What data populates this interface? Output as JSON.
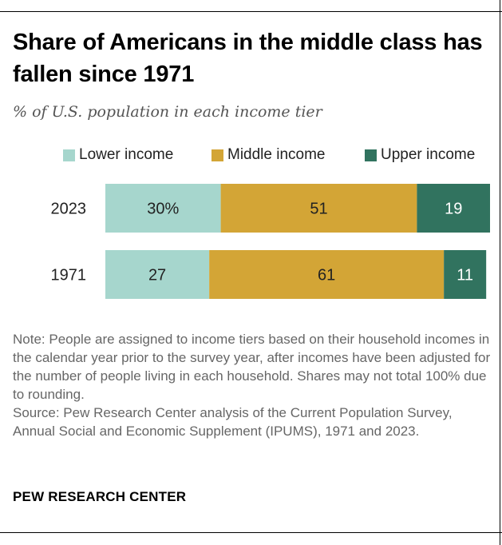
{
  "header": {
    "title": "Share of Americans in the middle class has fallen since 1971",
    "subtitle": "% of U.S. population in each income tier"
  },
  "legend": {
    "items": [
      {
        "label": "Lower income",
        "color": "#a6d6cd"
      },
      {
        "label": "Middle income",
        "color": "#d3a536"
      },
      {
        "label": "Upper income",
        "color": "#31735f"
      }
    ]
  },
  "chart_data": {
    "type": "bar",
    "orientation": "horizontal",
    "stacked": true,
    "categories": [
      "2023",
      "1971"
    ],
    "series": [
      {
        "name": "Lower income",
        "color": "#a6d6cd",
        "values": [
          30,
          27
        ],
        "labels": [
          "30%",
          "27"
        ],
        "label_color": "#222222"
      },
      {
        "name": "Middle income",
        "color": "#d3a536",
        "values": [
          51,
          61
        ],
        "labels": [
          "51",
          "61"
        ],
        "label_color": "#222222"
      },
      {
        "name": "Upper income",
        "color": "#31735f",
        "values": [
          19,
          11
        ],
        "labels": [
          "19",
          "11"
        ],
        "label_color": "#ffffff"
      }
    ],
    "xlim": [
      0,
      100
    ],
    "grid": false,
    "legend_position": "top"
  },
  "footer": {
    "note": "Note: People are assigned to income tiers based on their household incomes in the calendar year prior to the survey year, after incomes have been adjusted for the number of people living in each household. Shares may not total 100% due to rounding.",
    "source": "Source: Pew Research Center analysis of the Current Population Survey, Annual Social and Economic Supplement (IPUMS), 1971 and 2023.",
    "credit": "PEW RESEARCH CENTER"
  }
}
